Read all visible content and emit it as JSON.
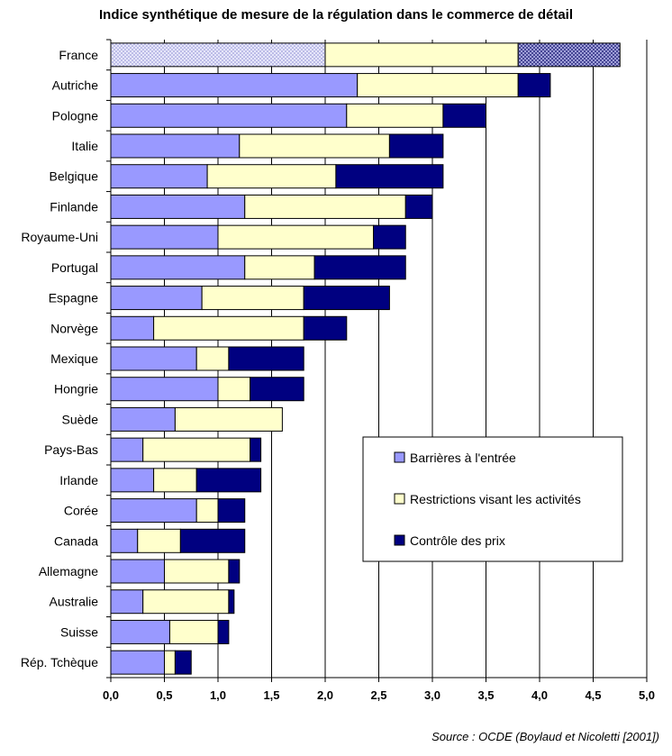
{
  "chart_data": {
    "type": "bar",
    "orientation": "horizontal",
    "stacked": true,
    "title": "Indice synthétique de mesure de la régulation dans le commerce de détail",
    "source": "Source : OCDE (Boylaud et Nicoletti [2001])",
    "categories": [
      "France",
      "Autriche",
      "Pologne",
      "Italie",
      "Belgique",
      "Finlande",
      "Royaume-Uni",
      "Portugal",
      "Espagne",
      "Norvège",
      "Mexique",
      "Hongrie",
      "Suède",
      "Pays-Bas",
      "Irlande",
      "Corée",
      "Canada",
      "Allemagne",
      "Australie",
      "Suisse",
      "Rép. Tchèque"
    ],
    "series": [
      {
        "name": "Barrières à l'entrée",
        "color": "#9999ff",
        "values": [
          2.0,
          2.3,
          2.2,
          1.2,
          0.9,
          1.25,
          1.0,
          1.25,
          0.85,
          0.4,
          0.8,
          1.0,
          0.6,
          0.3,
          0.4,
          0.8,
          0.25,
          0.5,
          0.3,
          0.55,
          0.5
        ]
      },
      {
        "name": "Restrictions visant les activités",
        "color": "#ffffcc",
        "values": [
          1.8,
          1.5,
          0.9,
          1.4,
          1.2,
          1.5,
          1.45,
          0.65,
          0.95,
          1.4,
          0.3,
          0.3,
          1.0,
          1.0,
          0.4,
          0.2,
          0.4,
          0.6,
          0.8,
          0.45,
          0.1
        ]
      },
      {
        "name": "Contrôle des prix",
        "color": "#000080",
        "values": [
          0.95,
          0.3,
          0.4,
          0.5,
          1.0,
          0.25,
          0.3,
          0.85,
          0.8,
          0.4,
          0.7,
          0.5,
          0.0,
          0.1,
          0.6,
          0.25,
          0.6,
          0.1,
          0.05,
          0.1,
          0.15
        ]
      }
    ],
    "hatched_category": "France",
    "hatched_colors": [
      "#c8c8f0",
      "#ffffcc",
      "#7a7ab8"
    ],
    "xlim": [
      0,
      5
    ],
    "xticks": [
      "0,0",
      "0,5",
      "1,0",
      "1,5",
      "2,0",
      "2,5",
      "3,0",
      "3,5",
      "4,0",
      "4,5",
      "5,0"
    ],
    "xtick_values": [
      0,
      0.5,
      1.0,
      1.5,
      2.0,
      2.5,
      3.0,
      3.5,
      4.0,
      4.5,
      5.0
    ],
    "grid": true,
    "legend_placement": "bottom-right"
  }
}
